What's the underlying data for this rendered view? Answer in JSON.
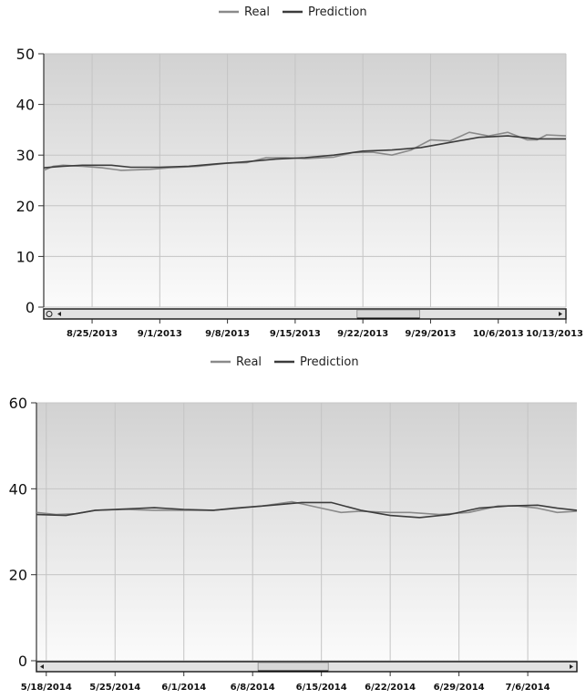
{
  "colors": {
    "real": "#8a8a8a",
    "prediction": "#3c3c3c",
    "plot_bg_top": "#d2d2d2",
    "plot_bg_bottom": "#fbfbfb",
    "grid": "#c4c4c4",
    "scroll_track": "#e2e2e2"
  },
  "chart_data": [
    {
      "type": "line",
      "legend": "top-center",
      "grid": true,
      "ylim": [
        0,
        50
      ],
      "yticks": [
        0,
        10,
        20,
        30,
        40,
        50
      ],
      "x_start": "2013-08-20",
      "x_end": "2013-10-13",
      "x_tick_dates": [
        "2013-08-25",
        "2013-09-01",
        "2013-09-08",
        "2013-09-15",
        "2013-09-22",
        "2013-09-29",
        "2013-10-06",
        "2013-10-13"
      ],
      "x_tick_labels": [
        "8/25/2013",
        "9/1/2013",
        "9/8/2013",
        "9/15/2013",
        "9/22/2013",
        "9/29/2013",
        "10/6/2013",
        "10/13/2013"
      ],
      "series": [
        {
          "name": "Real",
          "color_key": "real",
          "points": [
            [
              "2013-08-20",
              27.0
            ],
            [
              "2013-08-21",
              27.8
            ],
            [
              "2013-08-22",
              28.0
            ],
            [
              "2013-08-24",
              27.8
            ],
            [
              "2013-08-26",
              27.5
            ],
            [
              "2013-08-28",
              27.0
            ],
            [
              "2013-08-31",
              27.2
            ],
            [
              "2013-09-02",
              27.5
            ],
            [
              "2013-09-05",
              27.8
            ],
            [
              "2013-09-08",
              28.4
            ],
            [
              "2013-09-10",
              28.5
            ],
            [
              "2013-09-12",
              29.5
            ],
            [
              "2013-09-14",
              29.5
            ],
            [
              "2013-09-16",
              29.3
            ],
            [
              "2013-09-19",
              29.6
            ],
            [
              "2013-09-21",
              30.5
            ],
            [
              "2013-09-23",
              30.6
            ],
            [
              "2013-09-25",
              30.0
            ],
            [
              "2013-09-27",
              31.0
            ],
            [
              "2013-09-29",
              33.0
            ],
            [
              "2013-10-01",
              32.8
            ],
            [
              "2013-10-03",
              34.5
            ],
            [
              "2013-10-05",
              33.8
            ],
            [
              "2013-10-07",
              34.5
            ],
            [
              "2013-10-09",
              33.0
            ],
            [
              "2013-10-10",
              33.0
            ],
            [
              "2013-10-11",
              34.0
            ],
            [
              "2013-10-13",
              33.8
            ]
          ]
        },
        {
          "name": "Prediction",
          "color_key": "prediction",
          "points": [
            [
              "2013-08-20",
              27.5
            ],
            [
              "2013-08-22",
              27.8
            ],
            [
              "2013-08-24",
              28.0
            ],
            [
              "2013-08-27",
              28.0
            ],
            [
              "2013-08-29",
              27.6
            ],
            [
              "2013-09-01",
              27.6
            ],
            [
              "2013-09-04",
              27.8
            ],
            [
              "2013-09-07",
              28.3
            ],
            [
              "2013-09-10",
              28.7
            ],
            [
              "2013-09-13",
              29.2
            ],
            [
              "2013-09-16",
              29.5
            ],
            [
              "2013-09-19",
              30.0
            ],
            [
              "2013-09-22",
              30.8
            ],
            [
              "2013-09-25",
              31.0
            ],
            [
              "2013-09-28",
              31.5
            ],
            [
              "2013-10-01",
              32.5
            ],
            [
              "2013-10-04",
              33.5
            ],
            [
              "2013-10-07",
              33.8
            ],
            [
              "2013-10-10",
              33.2
            ],
            [
              "2013-10-13",
              33.2
            ]
          ]
        }
      ],
      "scroll_thumb": [
        0.6,
        0.72
      ]
    },
    {
      "type": "line",
      "legend": "top-center",
      "grid": true,
      "ylim": [
        0,
        60
      ],
      "yticks": [
        0,
        20,
        40,
        60
      ],
      "x_start": "2014-05-17",
      "x_end": "2014-07-11",
      "x_tick_dates": [
        "2014-05-18",
        "2014-05-25",
        "2014-06-01",
        "2014-06-08",
        "2014-06-15",
        "2014-06-22",
        "2014-06-29",
        "2014-07-06"
      ],
      "x_tick_labels": [
        "5/18/2014",
        "5/25/2014",
        "6/1/2014",
        "6/8/2014",
        "6/15/2014",
        "6/22/2014",
        "6/29/2014",
        "7/6/2014"
      ],
      "series": [
        {
          "name": "Real",
          "color_key": "real",
          "points": [
            [
              "2014-05-17",
              34.5
            ],
            [
              "2014-05-19",
              34.0
            ],
            [
              "2014-05-21",
              34.2
            ],
            [
              "2014-05-23",
              35.0
            ],
            [
              "2014-05-26",
              35.2
            ],
            [
              "2014-05-29",
              35.0
            ],
            [
              "2014-06-01",
              35.0
            ],
            [
              "2014-06-04",
              35.0
            ],
            [
              "2014-06-06",
              35.5
            ],
            [
              "2014-06-09",
              36.0
            ],
            [
              "2014-06-12",
              37.0
            ],
            [
              "2014-06-15",
              35.5
            ],
            [
              "2014-06-17",
              34.5
            ],
            [
              "2014-06-19",
              34.8
            ],
            [
              "2014-06-22",
              34.5
            ],
            [
              "2014-06-24",
              34.5
            ],
            [
              "2014-06-27",
              34.0
            ],
            [
              "2014-06-30",
              34.5
            ],
            [
              "2014-07-03",
              36.0
            ],
            [
              "2014-07-05",
              36.0
            ],
            [
              "2014-07-07",
              35.5
            ],
            [
              "2014-07-09",
              34.5
            ],
            [
              "2014-07-11",
              34.8
            ]
          ]
        },
        {
          "name": "Prediction",
          "color_key": "prediction",
          "points": [
            [
              "2014-05-17",
              34.0
            ],
            [
              "2014-05-20",
              33.8
            ],
            [
              "2014-05-23",
              35.0
            ],
            [
              "2014-05-26",
              35.3
            ],
            [
              "2014-05-29",
              35.6
            ],
            [
              "2014-06-01",
              35.2
            ],
            [
              "2014-06-04",
              35.0
            ],
            [
              "2014-06-07",
              35.6
            ],
            [
              "2014-06-10",
              36.2
            ],
            [
              "2014-06-13",
              36.8
            ],
            [
              "2014-06-16",
              36.8
            ],
            [
              "2014-06-19",
              35.0
            ],
            [
              "2014-06-22",
              33.8
            ],
            [
              "2014-06-25",
              33.3
            ],
            [
              "2014-06-28",
              34.0
            ],
            [
              "2014-07-01",
              35.5
            ],
            [
              "2014-07-04",
              36.0
            ],
            [
              "2014-07-07",
              36.2
            ],
            [
              "2014-07-09",
              35.5
            ],
            [
              "2014-07-11",
              35.0
            ]
          ]
        }
      ],
      "scroll_thumb": [
        0.41,
        0.54
      ]
    }
  ]
}
